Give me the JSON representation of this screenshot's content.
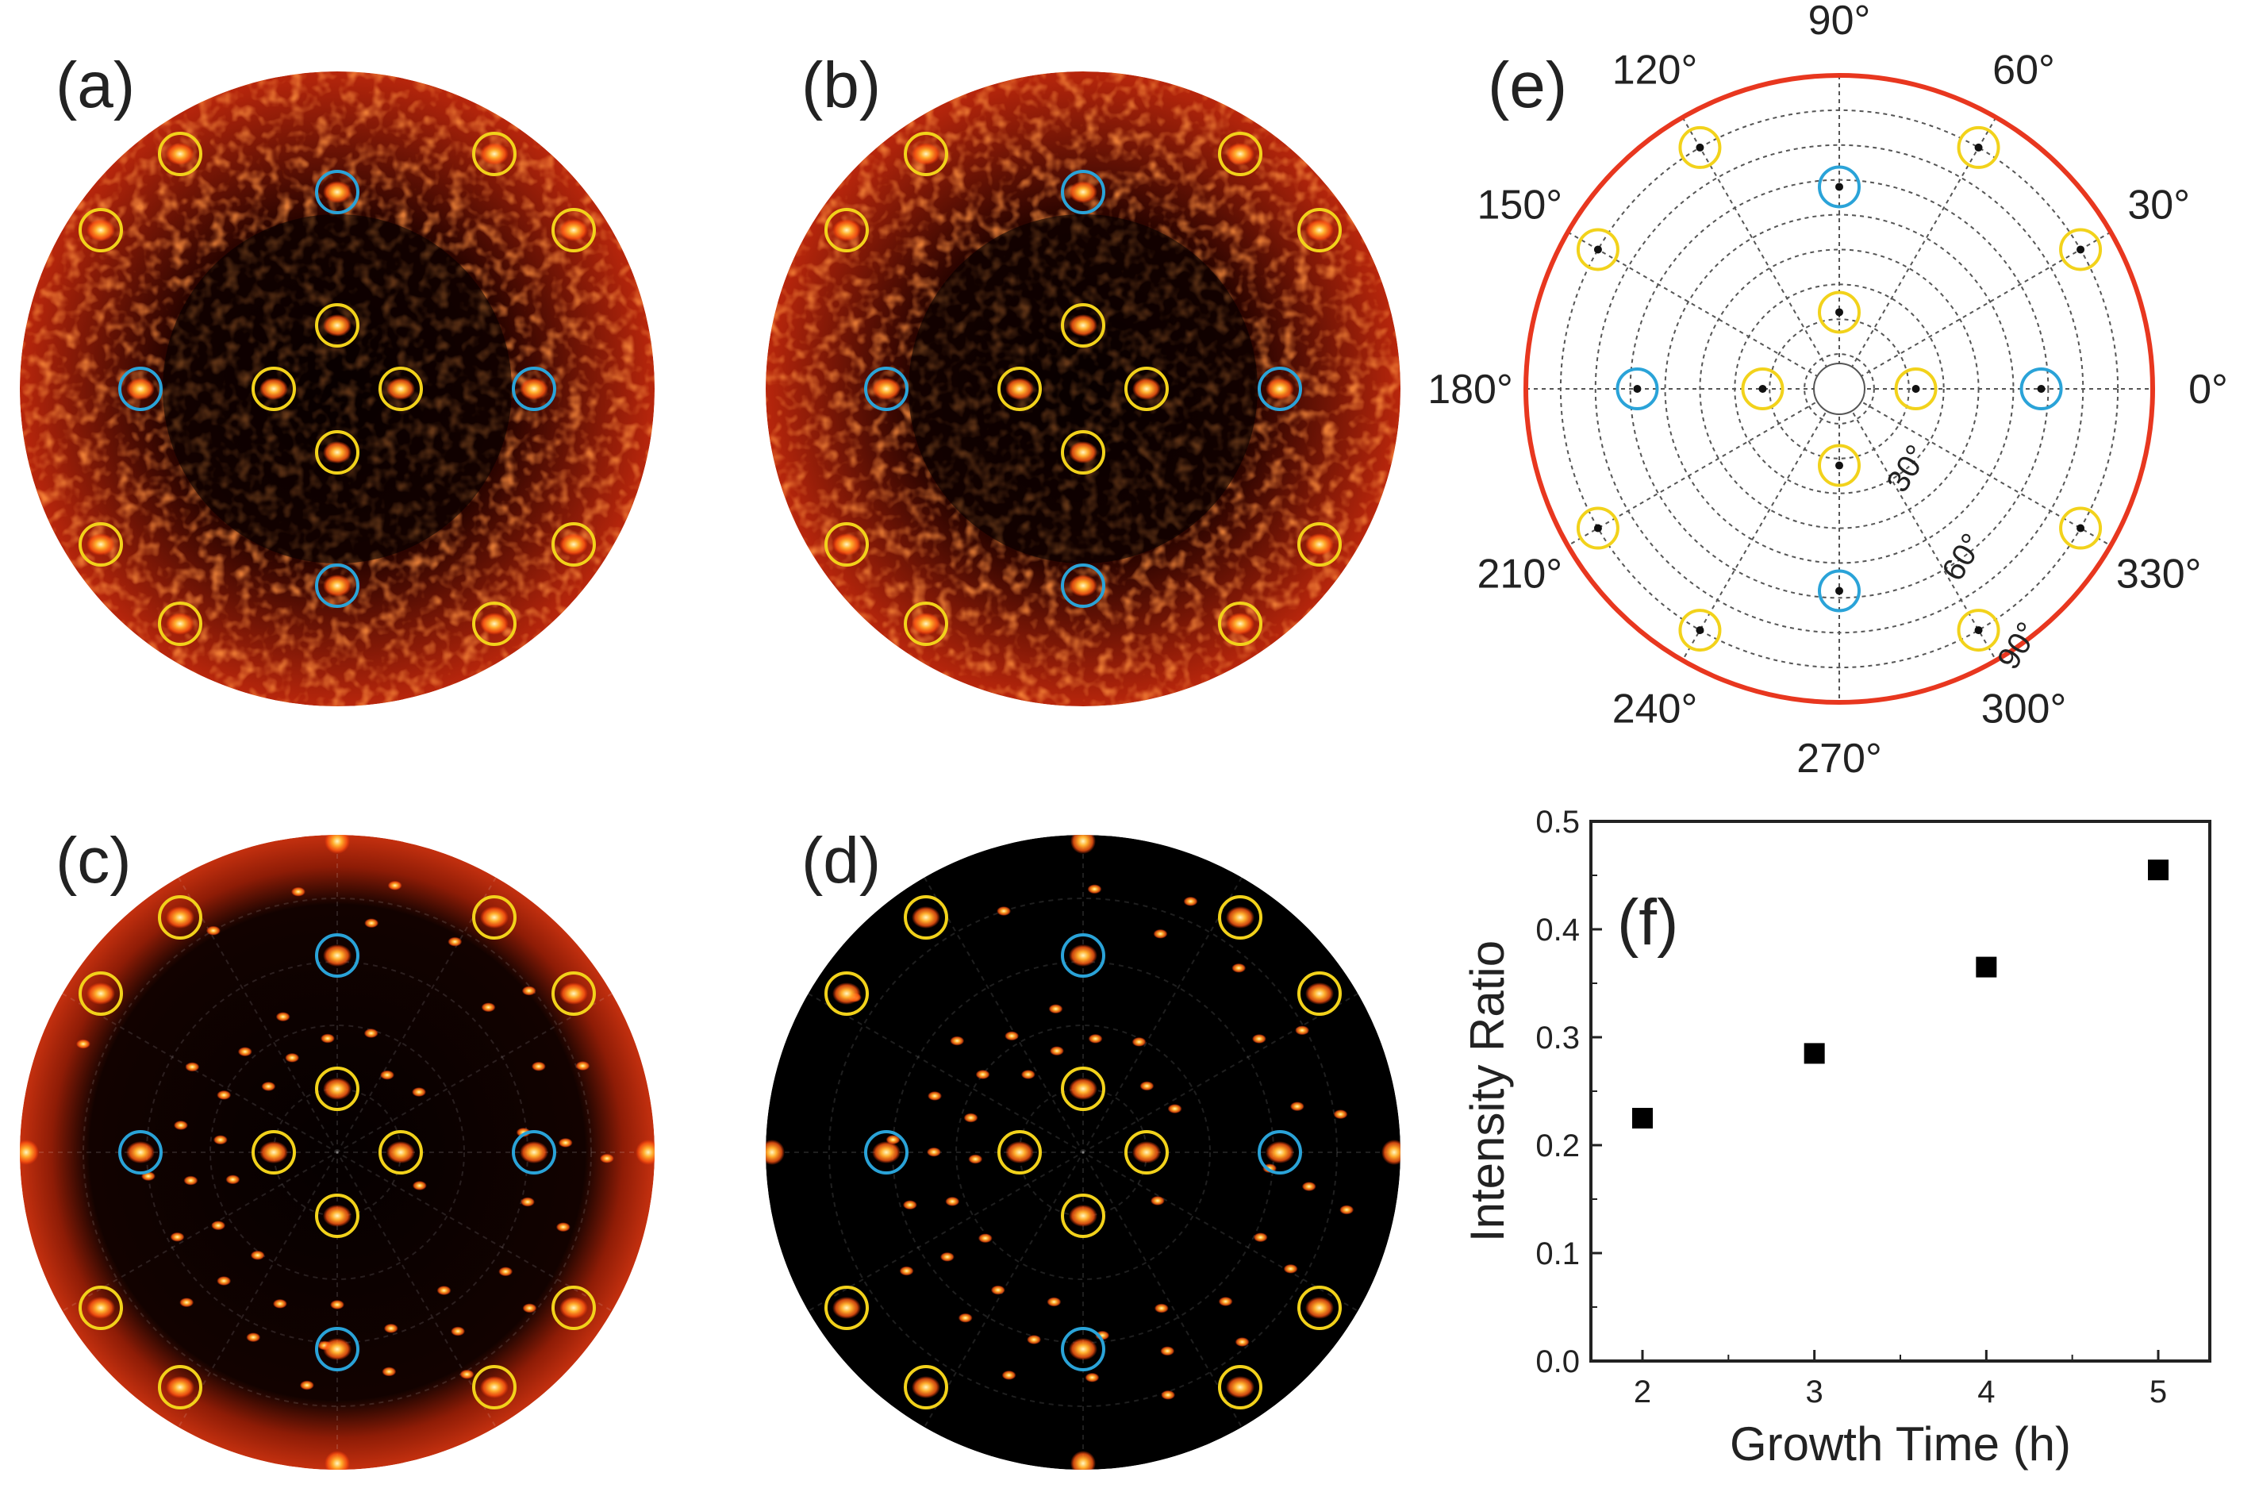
{
  "panels": {
    "a": "(a)",
    "b": "(b)",
    "c": "(c)",
    "d": "(d)",
    "e": "(e)",
    "f": "(f)"
  },
  "colors": {
    "yellow_marker": "#f2d21b",
    "blue_marker": "#2aa3d8",
    "polar_rim": "#e8371f",
    "background_noise": "#b5200a",
    "spot": "#ff8a1c"
  },
  "pole_figures": [
    {
      "panel": "a",
      "background": "noisy"
    },
    {
      "panel": "b",
      "background": "noisy"
    },
    {
      "panel": "c",
      "background": "ring"
    },
    {
      "panel": "d",
      "background": "dark"
    }
  ],
  "stereogram": {
    "azimuth_labels": [
      "0°",
      "30°",
      "60°",
      "90°",
      "120°",
      "150°",
      "180°",
      "210°",
      "240°",
      "270°",
      "300°",
      "330°"
    ],
    "tilt_labels": [
      "30°",
      "60°",
      "90°"
    ],
    "yellow_poles": [
      {
        "azimuth": 0,
        "tilt": 22
      },
      {
        "azimuth": 90,
        "tilt": 22
      },
      {
        "azimuth": 180,
        "tilt": 22
      },
      {
        "azimuth": 270,
        "tilt": 22
      },
      {
        "azimuth": 30,
        "tilt": 80
      },
      {
        "azimuth": 60,
        "tilt": 80
      },
      {
        "azimuth": 120,
        "tilt": 80
      },
      {
        "azimuth": 150,
        "tilt": 80
      },
      {
        "azimuth": 210,
        "tilt": 80
      },
      {
        "azimuth": 240,
        "tilt": 80
      },
      {
        "azimuth": 300,
        "tilt": 80
      },
      {
        "azimuth": 330,
        "tilt": 80
      }
    ],
    "blue_poles": [
      {
        "azimuth": 0,
        "tilt": 58
      },
      {
        "azimuth": 90,
        "tilt": 58
      },
      {
        "azimuth": 180,
        "tilt": 58
      },
      {
        "azimuth": 270,
        "tilt": 58
      }
    ]
  },
  "chart_data": {
    "type": "scatter",
    "xlabel": "Growth Time (h)",
    "ylabel": "Intensity Ratio",
    "x": [
      2,
      3,
      4,
      5
    ],
    "y": [
      0.225,
      0.285,
      0.365,
      0.455
    ],
    "xlim": [
      1.7,
      5.3
    ],
    "ylim": [
      0.0,
      0.5
    ],
    "xticks": [
      "2",
      "3",
      "4",
      "5"
    ],
    "yticks": [
      "0.0",
      "0.1",
      "0.2",
      "0.3",
      "0.4",
      "0.5"
    ],
    "marker": "square",
    "grid": false
  }
}
